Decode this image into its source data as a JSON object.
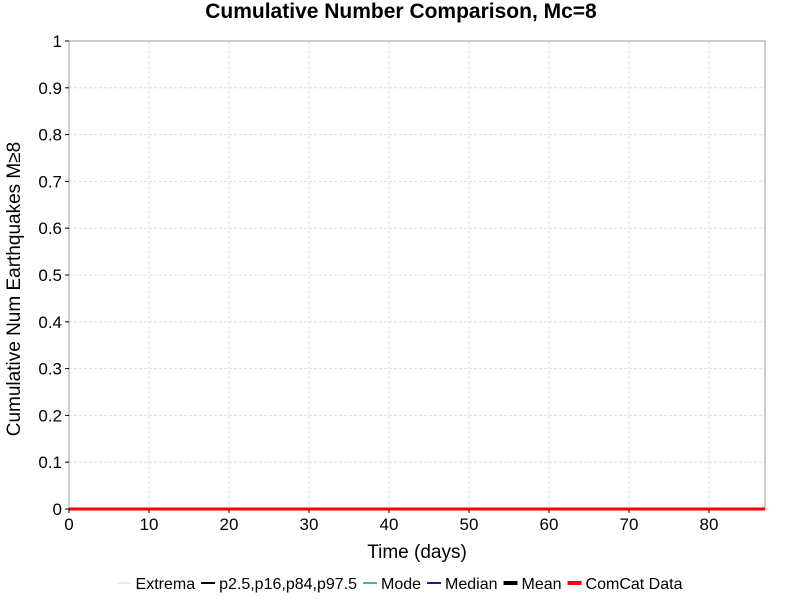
{
  "chart_data": {
    "type": "line",
    "title": "Cumulative Number Comparison, Mc=8",
    "xlabel": "Time (days)",
    "ylabel": "Cumulative Num Earthquakes M≥8",
    "xlim": [
      0,
      87
    ],
    "ylim": [
      0,
      1
    ],
    "x_ticks": [
      0,
      10,
      20,
      30,
      40,
      50,
      60,
      70,
      80
    ],
    "y_ticks": [
      0,
      0.1,
      0.2,
      0.3,
      0.4,
      0.5,
      0.6,
      0.7,
      0.8,
      0.9,
      1
    ],
    "x_tick_labels": [
      "0",
      "10",
      "20",
      "30",
      "40",
      "50",
      "60",
      "70",
      "80"
    ],
    "y_tick_labels": [
      "0",
      "0.1",
      "0.2",
      "0.3",
      "0.4",
      "0.5",
      "0.6",
      "0.7",
      "0.8",
      "0.9",
      "1"
    ],
    "grid": true,
    "legend_position": "bottom",
    "legend": [
      {
        "label": "Extrema",
        "color": "#aaaaaa",
        "style": "dotted"
      },
      {
        "label": "p2.5,p16,p84,p97.5",
        "color": "#000000",
        "style": "solid-thin"
      },
      {
        "label": "Mode",
        "color": "#3cb8b2",
        "style": "solid"
      },
      {
        "label": "Median",
        "color": "#1a1aa0",
        "style": "solid"
      },
      {
        "label": "Mean",
        "color": "#000000",
        "style": "solid-thick"
      },
      {
        "label": "ComCat Data",
        "color": "#ff0000",
        "style": "solid-thick"
      }
    ],
    "series": [
      {
        "name": "ComCat Data",
        "color": "#ff0000",
        "x": [
          0,
          87
        ],
        "values": [
          0,
          0
        ]
      }
    ]
  }
}
